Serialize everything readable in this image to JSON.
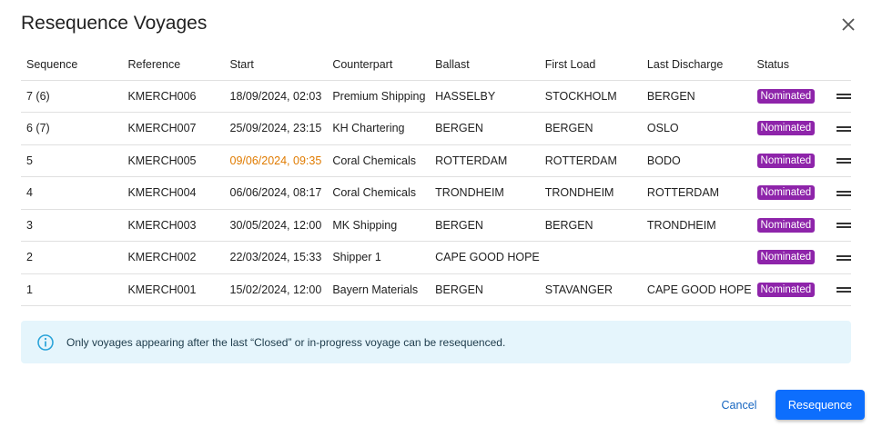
{
  "dialog": {
    "title": "Resequence Voyages",
    "close_icon": "close-icon"
  },
  "table": {
    "headers": [
      "Sequence",
      "Reference",
      "Start",
      "Counterpart",
      "Ballast",
      "First Load",
      "Last Discharge",
      "Status"
    ],
    "rows": [
      {
        "sequence": "7 (6)",
        "reference": "KMERCH006",
        "start": "18/09/2024, 02:03",
        "counterpart": "Premium Shipping",
        "ballast": "HASSELBY",
        "first_load": "STOCKHOLM",
        "last_discharge": "BERGEN",
        "status": "Nominated",
        "start_highlight": false
      },
      {
        "sequence": "6 (7)",
        "reference": "KMERCH007",
        "start": "25/09/2024, 23:15",
        "counterpart": "KH Chartering",
        "ballast": "BERGEN",
        "first_load": "BERGEN",
        "last_discharge": "OSLO",
        "status": "Nominated",
        "start_highlight": false
      },
      {
        "sequence": "5",
        "reference": "KMERCH005",
        "start": "09/06/2024, 09:35",
        "counterpart": "Coral Chemicals",
        "ballast": "ROTTERDAM",
        "first_load": "ROTTERDAM",
        "last_discharge": "BODO",
        "status": "Nominated",
        "start_highlight": true
      },
      {
        "sequence": "4",
        "reference": "KMERCH004",
        "start": "06/06/2024, 08:17",
        "counterpart": "Coral Chemicals",
        "ballast": "TRONDHEIM",
        "first_load": "TRONDHEIM",
        "last_discharge": "ROTTERDAM",
        "status": "Nominated",
        "start_highlight": false
      },
      {
        "sequence": "3",
        "reference": "KMERCH003",
        "start": "30/05/2024, 12:00",
        "counterpart": "MK Shipping",
        "ballast": "BERGEN",
        "first_load": "BERGEN",
        "last_discharge": "TRONDHEIM",
        "status": "Nominated",
        "start_highlight": false
      },
      {
        "sequence": "2",
        "reference": "KMERCH002",
        "start": "22/03/2024, 15:33",
        "counterpart": "Shipper 1",
        "ballast": "CAPE GOOD HOPE",
        "first_load": "",
        "last_discharge": "",
        "status": "Nominated",
        "start_highlight": false
      },
      {
        "sequence": "1",
        "reference": "KMERCH001",
        "start": "15/02/2024, 12:00",
        "counterpart": "Bayern Materials",
        "ballast": "BERGEN",
        "first_load": "STAVANGER",
        "last_discharge": "CAPE GOOD HOPE",
        "status": "Nominated",
        "start_highlight": false
      }
    ]
  },
  "info": {
    "icon": "info-icon",
    "text": "Only voyages appearing after the last “Closed” or in-progress voyage can be resequenced."
  },
  "actions": {
    "cancel": "Cancel",
    "resequence": "Resequence"
  },
  "colors": {
    "badge": "#8e24aa",
    "highlight": "#e07b00",
    "primary": "#0d6efd",
    "info_bg": "#e5f5fc",
    "info_icon": "#29a3d9"
  }
}
